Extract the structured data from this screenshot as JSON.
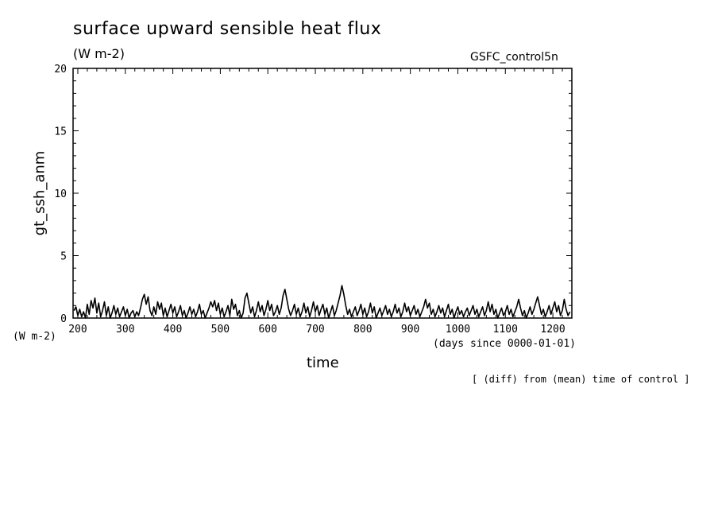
{
  "chart_data": {
    "type": "line",
    "title": "surface upward sensible heat flux",
    "unit_label": "(W m-2)",
    "run_name": "GSFC_control5n",
    "xlabel": "time",
    "x_unit_label": "(days since 0000-01-01)",
    "ylabel": "gt_ssh_anm",
    "y_unit_label": "(W m-2)",
    "footnote": "[ (diff) from (mean) time of control ]",
    "xlim": [
      190,
      1240
    ],
    "ylim": [
      0,
      20
    ],
    "x_ticks": [
      200,
      300,
      400,
      500,
      600,
      700,
      800,
      900,
      1000,
      1100,
      1200
    ],
    "y_ticks": [
      0,
      5,
      10,
      15,
      20
    ],
    "series": [
      {
        "values": [
          [
            192,
            0.6
          ],
          [
            196,
            0.9
          ],
          [
            200,
            0.2
          ],
          [
            204,
            0.7
          ],
          [
            208,
            0.1
          ],
          [
            212,
            0.5
          ],
          [
            216,
            0.0
          ],
          [
            220,
            1.1
          ],
          [
            224,
            0.3
          ],
          [
            228,
            1.4
          ],
          [
            232,
            0.8
          ],
          [
            236,
            1.6
          ],
          [
            240,
            0.4
          ],
          [
            244,
            1.2
          ],
          [
            248,
            0.1
          ],
          [
            252,
            0.6
          ],
          [
            256,
            1.3
          ],
          [
            260,
            0.2
          ],
          [
            264,
            0.9
          ],
          [
            268,
            0.0
          ],
          [
            272,
            0.4
          ],
          [
            276,
            1.0
          ],
          [
            280,
            0.3
          ],
          [
            284,
            0.8
          ],
          [
            288,
            0.1
          ],
          [
            292,
            0.5
          ],
          [
            296,
            0.9
          ],
          [
            300,
            0.2
          ],
          [
            304,
            0.7
          ],
          [
            308,
            0.0
          ],
          [
            312,
            0.4
          ],
          [
            316,
            0.6
          ],
          [
            320,
            0.1
          ],
          [
            324,
            0.5
          ],
          [
            328,
            0.2
          ],
          [
            332,
            0.8
          ],
          [
            336,
            1.5
          ],
          [
            340,
            1.9
          ],
          [
            344,
            1.1
          ],
          [
            348,
            1.7
          ],
          [
            352,
            0.6
          ],
          [
            356,
            0.2
          ],
          [
            360,
            0.9
          ],
          [
            364,
            0.3
          ],
          [
            368,
            1.3
          ],
          [
            372,
            0.7
          ],
          [
            376,
            1.2
          ],
          [
            380,
            0.2
          ],
          [
            384,
            0.8
          ],
          [
            388,
            0.1
          ],
          [
            392,
            0.6
          ],
          [
            396,
            1.1
          ],
          [
            400,
            0.4
          ],
          [
            404,
            0.9
          ],
          [
            408,
            0.1
          ],
          [
            412,
            0.5
          ],
          [
            416,
            1.0
          ],
          [
            420,
            0.2
          ],
          [
            424,
            0.6
          ],
          [
            428,
            0.0
          ],
          [
            432,
            0.4
          ],
          [
            436,
            0.9
          ],
          [
            440,
            0.3
          ],
          [
            444,
            0.7
          ],
          [
            448,
            0.1
          ],
          [
            452,
            0.5
          ],
          [
            456,
            1.1
          ],
          [
            460,
            0.3
          ],
          [
            464,
            0.6
          ],
          [
            468,
            0.0
          ],
          [
            472,
            0.4
          ],
          [
            476,
            0.8
          ],
          [
            480,
            1.3
          ],
          [
            484,
            0.9
          ],
          [
            488,
            1.4
          ],
          [
            492,
            0.6
          ],
          [
            496,
            1.2
          ],
          [
            500,
            0.3
          ],
          [
            504,
            0.8
          ],
          [
            508,
            0.1
          ],
          [
            512,
            0.5
          ],
          [
            516,
            1.0
          ],
          [
            520,
            0.2
          ],
          [
            524,
            1.5
          ],
          [
            528,
            0.7
          ],
          [
            532,
            1.1
          ],
          [
            536,
            0.2
          ],
          [
            540,
            0.6
          ],
          [
            544,
            0.0
          ],
          [
            548,
            0.4
          ],
          [
            552,
            1.6
          ],
          [
            556,
            2.0
          ],
          [
            560,
            1.2
          ],
          [
            564,
            0.4
          ],
          [
            568,
            0.9
          ],
          [
            572,
            0.1
          ],
          [
            576,
            0.6
          ],
          [
            580,
            1.3
          ],
          [
            584,
            0.5
          ],
          [
            588,
            1.0
          ],
          [
            592,
            0.2
          ],
          [
            596,
            0.7
          ],
          [
            600,
            1.4
          ],
          [
            604,
            0.6
          ],
          [
            608,
            1.1
          ],
          [
            612,
            0.2
          ],
          [
            616,
            0.5
          ],
          [
            620,
            1.0
          ],
          [
            624,
            0.3
          ],
          [
            628,
            0.8
          ],
          [
            632,
            1.8
          ],
          [
            636,
            2.3
          ],
          [
            640,
            1.5
          ],
          [
            644,
            0.7
          ],
          [
            648,
            0.2
          ],
          [
            652,
            0.6
          ],
          [
            656,
            1.1
          ],
          [
            660,
            0.3
          ],
          [
            664,
            0.8
          ],
          [
            668,
            0.1
          ],
          [
            672,
            0.5
          ],
          [
            676,
            1.2
          ],
          [
            680,
            0.4
          ],
          [
            684,
            0.9
          ],
          [
            688,
            0.1
          ],
          [
            692,
            0.6
          ],
          [
            696,
            1.3
          ],
          [
            700,
            0.5
          ],
          [
            704,
            1.0
          ],
          [
            708,
            0.2
          ],
          [
            712,
            0.7
          ],
          [
            716,
            1.1
          ],
          [
            720,
            0.3
          ],
          [
            724,
            0.8
          ],
          [
            728,
            0.0
          ],
          [
            732,
            0.5
          ],
          [
            736,
            1.0
          ],
          [
            740,
            0.2
          ],
          [
            744,
            0.6
          ],
          [
            748,
            1.2
          ],
          [
            752,
            1.8
          ],
          [
            756,
            2.6
          ],
          [
            760,
            1.9
          ],
          [
            764,
            1.0
          ],
          [
            768,
            0.3
          ],
          [
            772,
            0.7
          ],
          [
            776,
            0.1
          ],
          [
            780,
            0.5
          ],
          [
            784,
            0.9
          ],
          [
            788,
            0.2
          ],
          [
            792,
            0.6
          ],
          [
            796,
            1.1
          ],
          [
            800,
            0.3
          ],
          [
            804,
            0.8
          ],
          [
            808,
            0.1
          ],
          [
            812,
            0.5
          ],
          [
            816,
            1.2
          ],
          [
            820,
            0.4
          ],
          [
            824,
            0.9
          ],
          [
            828,
            0.0
          ],
          [
            832,
            0.4
          ],
          [
            836,
            0.8
          ],
          [
            840,
            0.2
          ],
          [
            844,
            0.6
          ],
          [
            848,
            1.0
          ],
          [
            852,
            0.3
          ],
          [
            856,
            0.7
          ],
          [
            860,
            0.1
          ],
          [
            864,
            0.5
          ],
          [
            868,
            1.1
          ],
          [
            872,
            0.4
          ],
          [
            876,
            0.8
          ],
          [
            880,
            0.1
          ],
          [
            884,
            0.5
          ],
          [
            888,
            1.2
          ],
          [
            892,
            0.5
          ],
          [
            896,
            0.9
          ],
          [
            900,
            0.2
          ],
          [
            904,
            0.6
          ],
          [
            908,
            1.0
          ],
          [
            912,
            0.3
          ],
          [
            916,
            0.7
          ],
          [
            920,
            0.1
          ],
          [
            924,
            0.5
          ],
          [
            928,
            0.9
          ],
          [
            932,
            1.5
          ],
          [
            936,
            0.8
          ],
          [
            940,
            1.2
          ],
          [
            944,
            0.3
          ],
          [
            948,
            0.7
          ],
          [
            952,
            0.1
          ],
          [
            956,
            0.5
          ],
          [
            960,
            1.0
          ],
          [
            964,
            0.4
          ],
          [
            968,
            0.8
          ],
          [
            972,
            0.1
          ],
          [
            976,
            0.6
          ],
          [
            980,
            1.1
          ],
          [
            984,
            0.3
          ],
          [
            988,
            0.7
          ],
          [
            992,
            0.0
          ],
          [
            996,
            0.5
          ],
          [
            1000,
            0.9
          ],
          [
            1004,
            0.3
          ],
          [
            1008,
            0.6
          ],
          [
            1012,
            0.1
          ],
          [
            1016,
            0.5
          ],
          [
            1020,
            0.8
          ],
          [
            1024,
            0.2
          ],
          [
            1028,
            0.6
          ],
          [
            1032,
            1.0
          ],
          [
            1036,
            0.3
          ],
          [
            1040,
            0.7
          ],
          [
            1044,
            0.1
          ],
          [
            1048,
            0.5
          ],
          [
            1052,
            0.9
          ],
          [
            1056,
            0.2
          ],
          [
            1060,
            0.6
          ],
          [
            1064,
            1.3
          ],
          [
            1068,
            0.5
          ],
          [
            1072,
            1.1
          ],
          [
            1076,
            0.3
          ],
          [
            1080,
            0.7
          ],
          [
            1084,
            0.0
          ],
          [
            1088,
            0.4
          ],
          [
            1092,
            0.8
          ],
          [
            1096,
            0.2
          ],
          [
            1100,
            0.5
          ],
          [
            1104,
            1.0
          ],
          [
            1108,
            0.3
          ],
          [
            1112,
            0.7
          ],
          [
            1116,
            0.1
          ],
          [
            1120,
            0.5
          ],
          [
            1124,
            0.9
          ],
          [
            1128,
            1.5
          ],
          [
            1132,
            0.8
          ],
          [
            1136,
            0.2
          ],
          [
            1140,
            0.6
          ],
          [
            1144,
            0.0
          ],
          [
            1148,
            0.4
          ],
          [
            1152,
            0.9
          ],
          [
            1156,
            0.3
          ],
          [
            1160,
            0.7
          ],
          [
            1164,
            1.2
          ],
          [
            1168,
            1.7
          ],
          [
            1172,
            1.0
          ],
          [
            1176,
            0.3
          ],
          [
            1180,
            0.7
          ],
          [
            1184,
            0.1
          ],
          [
            1188,
            0.5
          ],
          [
            1192,
            1.0
          ],
          [
            1196,
            0.3
          ],
          [
            1200,
            0.8
          ],
          [
            1204,
            1.3
          ],
          [
            1208,
            0.5
          ],
          [
            1212,
            1.0
          ],
          [
            1216,
            0.2
          ],
          [
            1220,
            0.6
          ],
          [
            1224,
            1.5
          ],
          [
            1228,
            0.7
          ],
          [
            1232,
            0.2
          ],
          [
            1236,
            0.5
          ]
        ]
      }
    ]
  }
}
